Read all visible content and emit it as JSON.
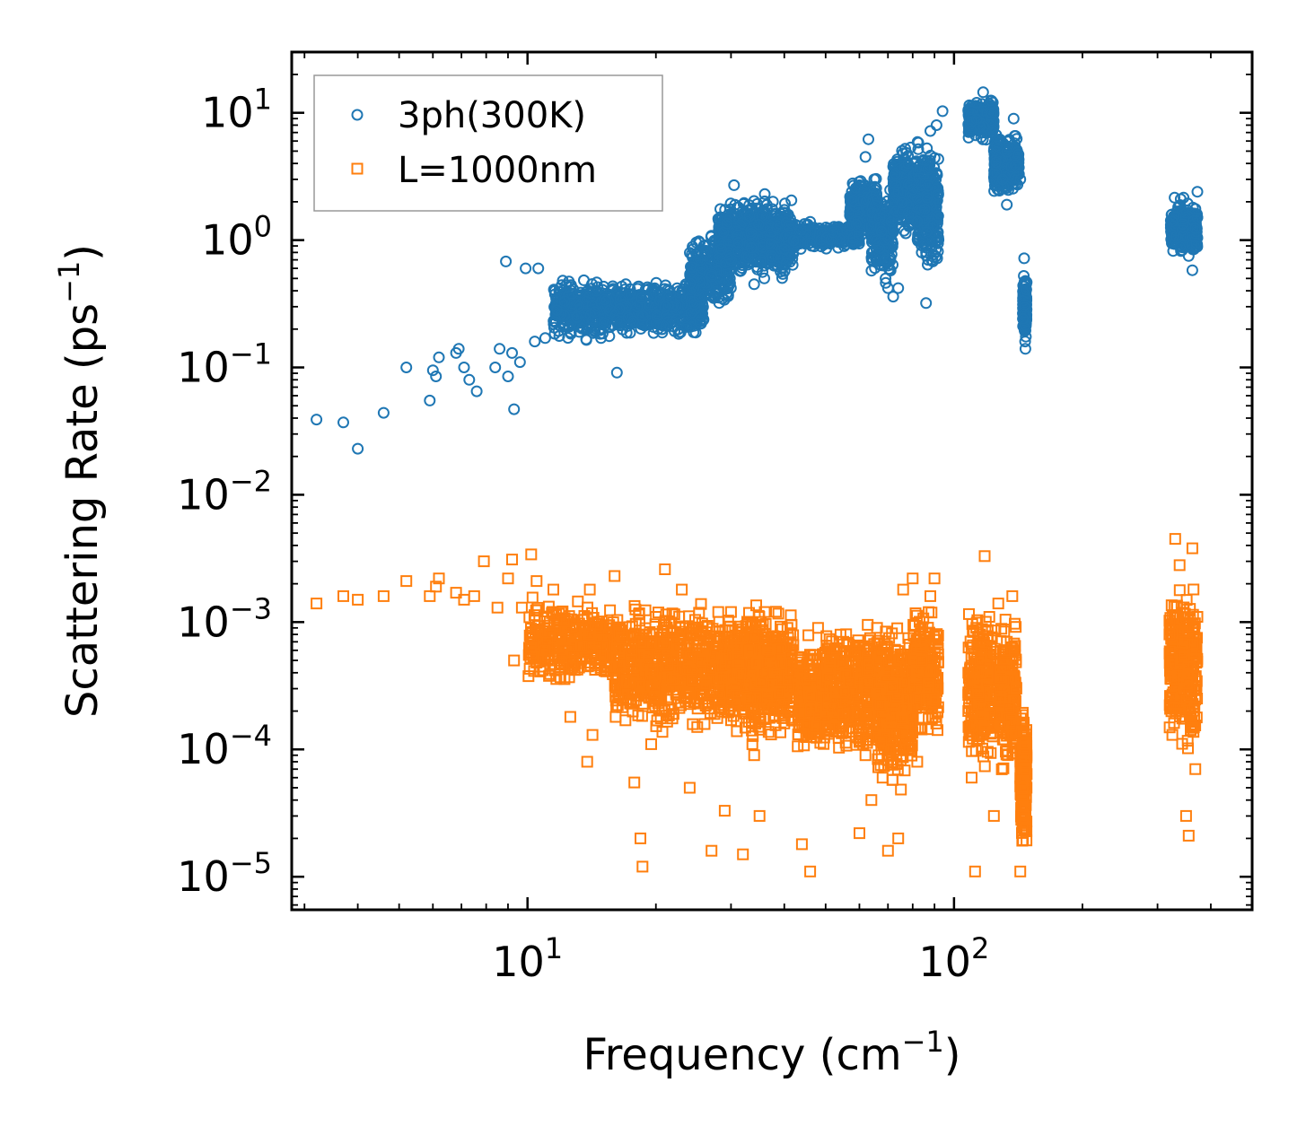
{
  "chart_data": {
    "type": "scatter",
    "title": "",
    "xlabel": {
      "text": "Frequency (cm",
      "sup": "−1",
      "suffix": ")"
    },
    "ylabel": {
      "text": "Scattering Rate (ps",
      "sup": "−1",
      "suffix": ")"
    },
    "xscale": "log",
    "yscale": "log",
    "xlim": [
      2.8,
      500
    ],
    "ylim": [
      5.5e-06,
      30
    ],
    "x_ticks": [
      {
        "value": 10,
        "base": "10",
        "exp": "1"
      },
      {
        "value": 100,
        "base": "10",
        "exp": "2"
      }
    ],
    "y_ticks": [
      {
        "value": 10,
        "base": "10",
        "exp": "1"
      },
      {
        "value": 1,
        "base": "10",
        "exp": "0"
      },
      {
        "value": 0.1,
        "base": "10",
        "exp": "−1"
      },
      {
        "value": 0.01,
        "base": "10",
        "exp": "−2"
      },
      {
        "value": 0.001,
        "base": "10",
        "exp": "−3"
      },
      {
        "value": 0.0001,
        "base": "10",
        "exp": "−4"
      },
      {
        "value": 1e-05,
        "base": "10",
        "exp": "−5"
      }
    ],
    "grid": false,
    "legend_position": "top-left",
    "series": [
      {
        "name": "3ph(300K)",
        "marker": "circle",
        "color": "#1f77b4",
        "points": [
          [
            3.2,
            0.039
          ],
          [
            3.7,
            0.037
          ],
          [
            4.0,
            0.023
          ],
          [
            4.6,
            0.044
          ],
          [
            5.2,
            0.1
          ],
          [
            5.9,
            0.055
          ],
          [
            6.0,
            0.095
          ],
          [
            6.1,
            0.085
          ],
          [
            6.2,
            0.12
          ],
          [
            6.8,
            0.13
          ],
          [
            6.9,
            0.14
          ],
          [
            7.1,
            0.1
          ],
          [
            7.3,
            0.08
          ],
          [
            7.6,
            0.065
          ],
          [
            8.4,
            0.1
          ],
          [
            8.6,
            0.14
          ],
          [
            8.9,
            0.68
          ],
          [
            9.0,
            0.085
          ],
          [
            9.2,
            0.13
          ],
          [
            9.3,
            0.047
          ],
          [
            9.6,
            0.11
          ],
          [
            9.9,
            0.6
          ],
          [
            10.4,
            0.16
          ],
          [
            10.6,
            0.6
          ],
          [
            11.0,
            0.17
          ],
          [
            11.6,
            0.4
          ],
          [
            12.1,
            0.48
          ],
          [
            13.2,
            0.3
          ],
          [
            14.5,
            0.4
          ],
          [
            16.2,
            0.091
          ],
          [
            17.0,
            0.45
          ],
          [
            18.5,
            0.35
          ],
          [
            21.0,
            0.3
          ],
          [
            23.5,
            0.45
          ],
          [
            25.0,
            0.78
          ],
          [
            27.0,
            0.52
          ],
          [
            28.5,
            0.85
          ],
          [
            30.5,
            2.7
          ],
          [
            31.0,
            1.8
          ],
          [
            34.0,
            0.45
          ],
          [
            36.0,
            2.3
          ],
          [
            38.0,
            1.6
          ],
          [
            40.0,
            0.85
          ],
          [
            46.0,
            0.95
          ],
          [
            52.0,
            1.15
          ],
          [
            57.0,
            1.3
          ],
          [
            60.0,
            2.7
          ],
          [
            62.0,
            4.5
          ],
          [
            63.0,
            6.2
          ],
          [
            65.0,
            3.0
          ],
          [
            67.0,
            1.5
          ],
          [
            69.0,
            0.7
          ],
          [
            70.0,
            0.42
          ],
          [
            72.0,
            0.36
          ],
          [
            74.0,
            0.42
          ],
          [
            76.0,
            4.8
          ],
          [
            78.0,
            4.0
          ],
          [
            80.0,
            2.5
          ],
          [
            82.0,
            1.4
          ],
          [
            84.0,
            0.8
          ],
          [
            86.0,
            0.32
          ],
          [
            88.0,
            7.2
          ],
          [
            91.0,
            8.0
          ],
          [
            94.0,
            10.3
          ],
          [
            110.0,
            8.5
          ],
          [
            113.0,
            12.0
          ],
          [
            117.0,
            14.5
          ],
          [
            122.0,
            12.5
          ],
          [
            126.0,
            5.5
          ],
          [
            130.0,
            3.0
          ],
          [
            133.0,
            1.9
          ],
          [
            138.0,
            9.0
          ],
          [
            143.0,
            3.0
          ],
          [
            146.0,
            0.72
          ],
          [
            147.0,
            0.14
          ],
          [
            325.0,
            1.4
          ],
          [
            340.0,
            2.1
          ],
          [
            355.0,
            0.75
          ],
          [
            362.0,
            0.58
          ],
          [
            372.0,
            2.4
          ]
        ]
      },
      {
        "name": "L=1000nm",
        "marker": "square",
        "color": "#ff7f0e",
        "points": [
          [
            3.2,
            0.0014
          ],
          [
            3.7,
            0.0016
          ],
          [
            4.0,
            0.0015
          ],
          [
            4.6,
            0.0016
          ],
          [
            5.2,
            0.0021
          ],
          [
            5.9,
            0.0016
          ],
          [
            6.1,
            0.0019
          ],
          [
            6.2,
            0.0022
          ],
          [
            6.8,
            0.0017
          ],
          [
            7.1,
            0.0015
          ],
          [
            7.5,
            0.0016
          ],
          [
            7.9,
            0.003
          ],
          [
            8.5,
            0.0013
          ],
          [
            9.0,
            0.0022
          ],
          [
            9.2,
            0.0031
          ],
          [
            9.3,
            0.0005
          ],
          [
            9.7,
            0.0013
          ],
          [
            10.2,
            0.0034
          ],
          [
            10.5,
            0.0021
          ],
          [
            11.0,
            0.0006
          ],
          [
            11.5,
            0.0018
          ],
          [
            12.0,
            0.0012
          ],
          [
            12.6,
            0.00018
          ],
          [
            13.0,
            0.0009
          ],
          [
            13.4,
            0.00065
          ],
          [
            13.8,
            8e-05
          ],
          [
            14.0,
            0.0018
          ],
          [
            14.2,
            0.00013
          ],
          [
            15.0,
            0.00055
          ],
          [
            16.0,
            0.0023
          ],
          [
            17.5,
            0.0005
          ],
          [
            17.8,
            5.5e-05
          ],
          [
            18.4,
            2e-05
          ],
          [
            18.6,
            1.2e-05
          ],
          [
            19.0,
            0.0008
          ],
          [
            19.5,
            0.00011
          ],
          [
            20.0,
            0.0011
          ],
          [
            21.0,
            0.0026
          ],
          [
            22.0,
            0.00019
          ],
          [
            23.0,
            0.0018
          ],
          [
            24.0,
            5e-05
          ],
          [
            25.0,
            0.00015
          ],
          [
            26.0,
            0.0003
          ],
          [
            27.0,
            1.6e-05
          ],
          [
            28.0,
            0.0012
          ],
          [
            29.0,
            3.3e-05
          ],
          [
            30.0,
            0.0012
          ],
          [
            31.0,
            0.0004
          ],
          [
            32.0,
            1.5e-05
          ],
          [
            34.0,
            9e-05
          ],
          [
            35.0,
            3e-05
          ],
          [
            36.0,
            0.0012
          ],
          [
            38.0,
            0.0004
          ],
          [
            40.0,
            0.00016
          ],
          [
            42.0,
            0.00066
          ],
          [
            44.0,
            1.8e-05
          ],
          [
            46.0,
            1.1e-05
          ],
          [
            48.0,
            0.0009
          ],
          [
            50.0,
            0.00015
          ],
          [
            52.0,
            0.0003
          ],
          [
            55.0,
            0.0007
          ],
          [
            58.0,
            0.0005
          ],
          [
            60.0,
            2.2e-05
          ],
          [
            62.0,
            9e-05
          ],
          [
            64.0,
            4e-05
          ],
          [
            66.0,
            0.0009
          ],
          [
            68.0,
            6e-05
          ],
          [
            70.0,
            1.6e-05
          ],
          [
            72.0,
            0.0001
          ],
          [
            74.0,
            2e-05
          ],
          [
            76.0,
            0.0018
          ],
          [
            78.0,
            0.00025
          ],
          [
            80.0,
            0.0022
          ],
          [
            82.0,
            8e-05
          ],
          [
            84.0,
            0.0005
          ],
          [
            86.0,
            0.00025
          ],
          [
            88.0,
            0.0016
          ],
          [
            90.0,
            0.0022
          ],
          [
            108.0,
            0.0004
          ],
          [
            110.0,
            6e-05
          ],
          [
            112.0,
            1.1e-05
          ],
          [
            115.0,
            0.0008
          ],
          [
            118.0,
            0.0033
          ],
          [
            121.0,
            0.0011
          ],
          [
            124.0,
            3e-05
          ],
          [
            127.0,
            0.0014
          ],
          [
            130.0,
            0.00015
          ],
          [
            133.0,
            0.0007
          ],
          [
            137.0,
            0.0016
          ],
          [
            140.0,
            0.0003
          ],
          [
            143.0,
            1.1e-05
          ],
          [
            146.0,
            0.00011
          ],
          [
            320.0,
            0.0008
          ],
          [
            325.0,
            0.00013
          ],
          [
            330.0,
            0.0045
          ],
          [
            338.0,
            0.0028
          ],
          [
            345.0,
            0.0013
          ],
          [
            350.0,
            3e-05
          ],
          [
            355.0,
            2.1e-05
          ],
          [
            362.0,
            0.0038
          ],
          [
            368.0,
            7e-05
          ],
          [
            372.0,
            0.0011
          ]
        ]
      }
    ],
    "clusters": [
      {
        "series": 0,
        "x": [
          11.5,
          16
        ],
        "y": [
          0.15,
          0.55
        ],
        "n": 320
      },
      {
        "series": 0,
        "x": [
          16,
          26
        ],
        "y": [
          0.16,
          0.5
        ],
        "n": 480
      },
      {
        "series": 0,
        "x": [
          24,
          30
        ],
        "y": [
          0.25,
          1.2
        ],
        "n": 240
      },
      {
        "series": 0,
        "x": [
          28,
          42
        ],
        "y": [
          0.45,
          2.4
        ],
        "n": 700
      },
      {
        "series": 0,
        "x": [
          40,
          60
        ],
        "y": [
          0.8,
          1.45
        ],
        "n": 240
      },
      {
        "series": 0,
        "x": [
          57,
          66
        ],
        "y": [
          0.9,
          3.5
        ],
        "n": 280
      },
      {
        "series": 0,
        "x": [
          64,
          72
        ],
        "y": [
          0.4,
          3.0
        ],
        "n": 220
      },
      {
        "series": 0,
        "x": [
          72,
          82
        ],
        "y": [
          1.0,
          6.0
        ],
        "n": 320
      },
      {
        "series": 0,
        "x": [
          82,
          92
        ],
        "y": [
          0.5,
          7.0
        ],
        "n": 260
      },
      {
        "series": 0,
        "x": [
          108,
          124
        ],
        "y": [
          6.0,
          13.0
        ],
        "n": 260
      },
      {
        "series": 0,
        "x": [
          124,
          142
        ],
        "y": [
          2.0,
          7.5
        ],
        "n": 260
      },
      {
        "series": 0,
        "x": [
          145,
          148
        ],
        "y": [
          0.14,
          0.65
        ],
        "n": 140
      },
      {
        "series": 0,
        "x": [
          322,
          372
        ],
        "y": [
          0.7,
          2.2
        ],
        "n": 300
      },
      {
        "series": 1,
        "x": [
          10,
          16
        ],
        "y": [
          0.0003,
          0.0017
        ],
        "n": 330
      },
      {
        "series": 1,
        "x": [
          16,
          30
        ],
        "y": [
          0.00012,
          0.0016
        ],
        "n": 720
      },
      {
        "series": 1,
        "x": [
          30,
          42
        ],
        "y": [
          0.0001,
          0.0016
        ],
        "n": 560
      },
      {
        "series": 1,
        "x": [
          43,
          50
        ],
        "y": [
          7e-05,
          0.0009
        ],
        "n": 220
      },
      {
        "series": 1,
        "x": [
          50,
          66
        ],
        "y": [
          8e-05,
          0.0012
        ],
        "n": 360
      },
      {
        "series": 1,
        "x": [
          66,
          80
        ],
        "y": [
          4e-05,
          0.0012
        ],
        "n": 380
      },
      {
        "series": 1,
        "x": [
          80,
          92
        ],
        "y": [
          0.0001,
          0.0016
        ],
        "n": 260
      },
      {
        "series": 1,
        "x": [
          108,
          125
        ],
        "y": [
          6e-05,
          0.0016
        ],
        "n": 260
      },
      {
        "series": 1,
        "x": [
          128,
          140
        ],
        "y": [
          5e-05,
          0.0013
        ],
        "n": 200
      },
      {
        "series": 1,
        "x": [
          143,
          148
        ],
        "y": [
          1.2e-05,
          0.0003
        ],
        "n": 160
      },
      {
        "series": 1,
        "x": [
          320,
          372
        ],
        "y": [
          8e-05,
          0.0025
        ],
        "n": 330
      }
    ]
  }
}
